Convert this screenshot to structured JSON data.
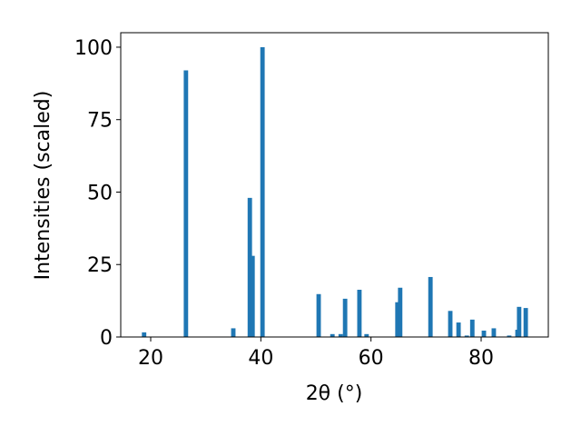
{
  "chart_data": {
    "type": "bar",
    "x_label": "2θ (°)",
    "y_label": "Intensities (scaled)",
    "x": [
      18.8,
      26.4,
      35.0,
      38.0,
      38.5,
      40.3,
      50.5,
      53.0,
      54.5,
      55.3,
      57.9,
      59.2,
      64.8,
      65.3,
      70.8,
      74.4,
      75.9,
      77.4,
      78.4,
      80.5,
      82.3,
      85.1,
      86.6,
      86.9,
      88.1
    ],
    "values": [
      1.6,
      92,
      3,
      48,
      28,
      100,
      14.8,
      1,
      1,
      13.2,
      16.3,
      1,
      12,
      17,
      20.7,
      9,
      5,
      0.5,
      6,
      2.2,
      3,
      0.5,
      2.5,
      10.4,
      10
    ],
    "bar_width": 0.8,
    "color": "#1f77b4",
    "xlim": [
      14.56,
      92.2
    ],
    "xticks": [
      20,
      40,
      60,
      80
    ],
    "ylim": [
      0,
      105
    ],
    "yticks": [
      0,
      25,
      50,
      75,
      100
    ]
  }
}
